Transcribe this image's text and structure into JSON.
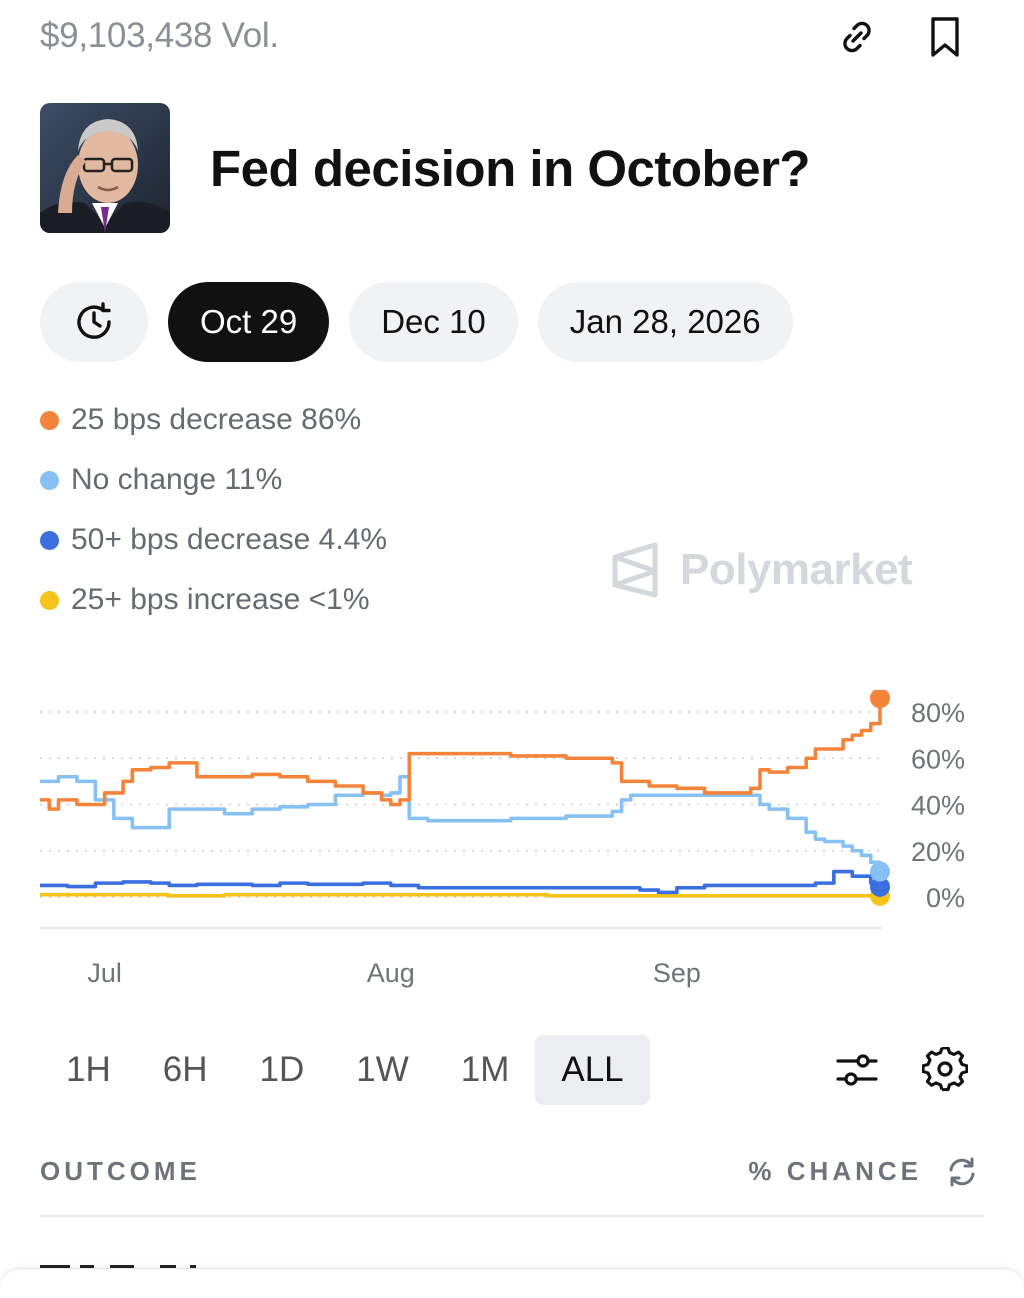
{
  "market": {
    "volume": "$9,103,438 Vol.",
    "title": "Fed decision in October?"
  },
  "date_tabs": [
    {
      "label": "Oct 29",
      "active": true
    },
    {
      "label": "Dec 10",
      "active": false
    },
    {
      "label": "Jan 28, 2026",
      "active": false
    }
  ],
  "legend": [
    {
      "label": "25 bps decrease 86%",
      "color": "#f5843b"
    },
    {
      "label": "No change 11%",
      "color": "#87c1f3"
    },
    {
      "label": "50+ bps decrease 4.4%",
      "color": "#3b6fe0"
    },
    {
      "label": "25+ bps increase <1%",
      "color": "#f6c31b"
    }
  ],
  "watermark": "Polymarket",
  "range_tabs": [
    {
      "label": "1H",
      "active": false
    },
    {
      "label": "6H",
      "active": false
    },
    {
      "label": "1D",
      "active": false
    },
    {
      "label": "1W",
      "active": false
    },
    {
      "label": "1M",
      "active": false
    },
    {
      "label": "ALL",
      "active": true
    }
  ],
  "outcome_header": {
    "outcome": "OUTCOME",
    "chance": "% CHANCE"
  },
  "icons": {
    "link": "link-icon",
    "bookmark": "bookmark-icon",
    "history": "history-icon",
    "filter": "sliders-icon",
    "settings": "gear-icon",
    "refresh": "refresh-icon"
  },
  "chart_data": {
    "type": "line",
    "title": "",
    "xlabel": "",
    "ylabel": "",
    "ylim": [
      0,
      80
    ],
    "yticks": [
      "80%",
      "60%",
      "40%",
      "20%",
      "0%"
    ],
    "ytick_values": [
      80,
      60,
      40,
      20,
      0
    ],
    "xticks": [
      "Jul",
      "Aug",
      "Sep"
    ],
    "xtick_positions": [
      7,
      38,
      69
    ],
    "xlim": [
      0,
      91
    ],
    "grid": true,
    "series": [
      {
        "name": "25 bps decrease",
        "color": "#f5843b",
        "x": [
          0,
          1,
          2,
          4,
          5,
          7,
          9,
          10,
          12,
          14,
          17,
          20,
          23,
          26,
          29,
          32,
          35,
          37,
          38,
          39,
          40,
          42,
          45,
          48,
          51,
          54,
          57,
          60,
          62,
          63,
          64,
          66,
          69,
          72,
          75,
          77,
          78,
          79,
          81,
          83,
          84,
          85,
          87,
          88,
          89,
          90,
          91
        ],
        "values": [
          42,
          38,
          42,
          40,
          40,
          45,
          50,
          55,
          56,
          58,
          52,
          52,
          53,
          52,
          50,
          48,
          45,
          42,
          40,
          42,
          62,
          62,
          62,
          62,
          61,
          61,
          60,
          60,
          58,
          50,
          50,
          48,
          47,
          45,
          45,
          47,
          55,
          54,
          56,
          60,
          64,
          64,
          68,
          70,
          72,
          75,
          86
        ]
      },
      {
        "name": "No change",
        "color": "#87c1f3",
        "x": [
          0,
          2,
          4,
          6,
          8,
          10,
          12,
          14,
          17,
          20,
          23,
          26,
          29,
          32,
          35,
          37,
          38,
          39,
          40,
          42,
          45,
          48,
          51,
          54,
          57,
          60,
          62,
          63,
          64,
          66,
          69,
          72,
          75,
          77,
          78,
          79,
          81,
          83,
          84,
          85,
          87,
          88,
          89,
          90,
          91
        ],
        "values": [
          50,
          52,
          50,
          42,
          34,
          30,
          30,
          38,
          38,
          36,
          38,
          39,
          40,
          44,
          45,
          44,
          45,
          52,
          34,
          33,
          33,
          33,
          34,
          34,
          35,
          35,
          37,
          42,
          44,
          44,
          44,
          44,
          44,
          44,
          40,
          38,
          34,
          28,
          25,
          24,
          22,
          20,
          18,
          15,
          11
        ]
      },
      {
        "name": "50+ bps decrease",
        "color": "#3b6fe0",
        "x": [
          0,
          3,
          6,
          9,
          12,
          14,
          17,
          20,
          23,
          26,
          29,
          32,
          35,
          38,
          41,
          45,
          49,
          53,
          57,
          61,
          65,
          67,
          69,
          72,
          75,
          78,
          81,
          84,
          86,
          88,
          89,
          90,
          91
        ],
        "values": [
          5,
          4.5,
          6,
          6.5,
          6,
          5,
          5.5,
          5.5,
          5,
          6,
          5.5,
          5.5,
          6,
          5,
          4,
          4,
          4,
          4,
          4,
          4,
          3,
          2,
          4,
          5,
          5,
          5,
          5,
          6,
          11,
          9,
          9,
          6,
          4.4
        ]
      },
      {
        "name": "25+ bps increase",
        "color": "#f6c31b",
        "x": [
          0,
          10,
          14,
          20,
          30,
          40,
          55,
          60,
          70,
          80,
          91
        ],
        "values": [
          1,
          1,
          0.5,
          1,
          1,
          1,
          0.5,
          0.5,
          0.5,
          0.5,
          0.5
        ]
      }
    ]
  }
}
